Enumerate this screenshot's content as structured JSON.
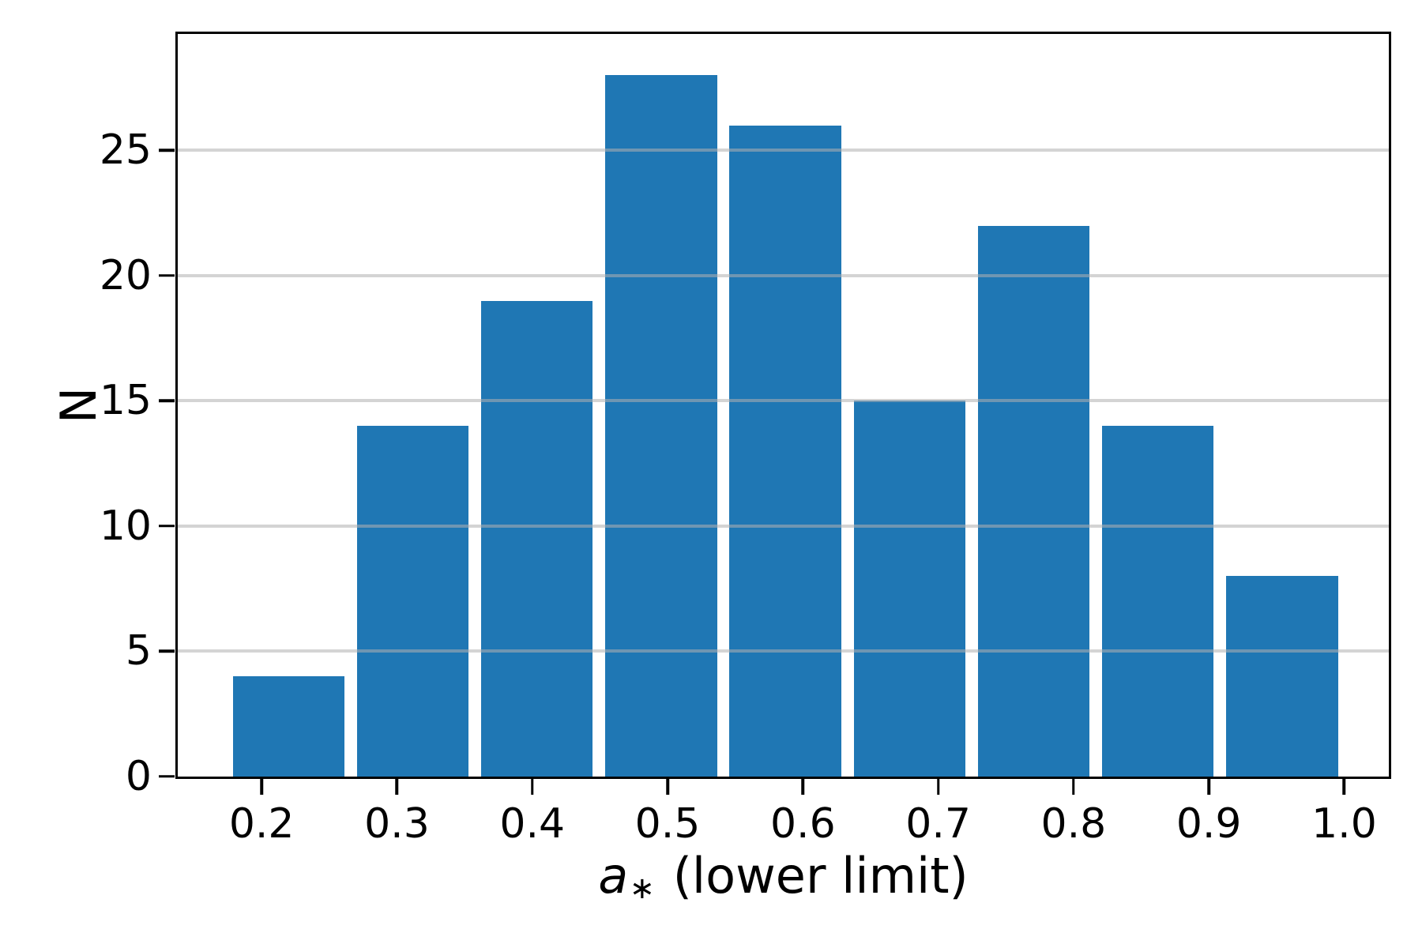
{
  "figure": {
    "background": "#ffffff"
  },
  "chart_data": {
    "type": "bar",
    "subtype": "histogram",
    "title": "",
    "xlabel": "a∗ (lower limit)",
    "xlabel_parts": {
      "variable": "a",
      "subscript": "∗",
      "rest": " (lower limit)"
    },
    "ylabel": "N",
    "values": [
      4,
      14,
      19,
      28,
      26,
      15,
      22,
      14,
      8
    ],
    "bin_start": 0.174,
    "bin_end": 1.0,
    "bin_count": 9,
    "bin_centers": [
      0.22,
      0.312,
      0.404,
      0.495,
      0.587,
      0.679,
      0.771,
      0.863,
      0.954
    ],
    "bar_width_fraction": 0.9,
    "x_ticks": [
      0.2,
      0.3,
      0.4,
      0.5,
      0.6,
      0.7,
      0.8,
      0.9,
      1.0
    ],
    "x_tick_labels": [
      "0.2",
      "0.3",
      "0.4",
      "0.5",
      "0.6",
      "0.7",
      "0.8",
      "0.9",
      "1.0"
    ],
    "y_ticks": [
      0,
      5,
      10,
      15,
      20,
      25
    ],
    "y_tick_labels": [
      "0",
      "5",
      "10",
      "15",
      "20",
      "25"
    ],
    "xlim": [
      0.138,
      1.033
    ],
    "ylim": [
      0,
      29.65
    ],
    "grid": {
      "axis": "y",
      "color": "#b0b0b0",
      "opacity": 0.55,
      "above_bars": true
    },
    "bar_color": "#1f77b4",
    "spine_color": "#000000",
    "tick_color": "#000000",
    "legend_position": "none"
  }
}
